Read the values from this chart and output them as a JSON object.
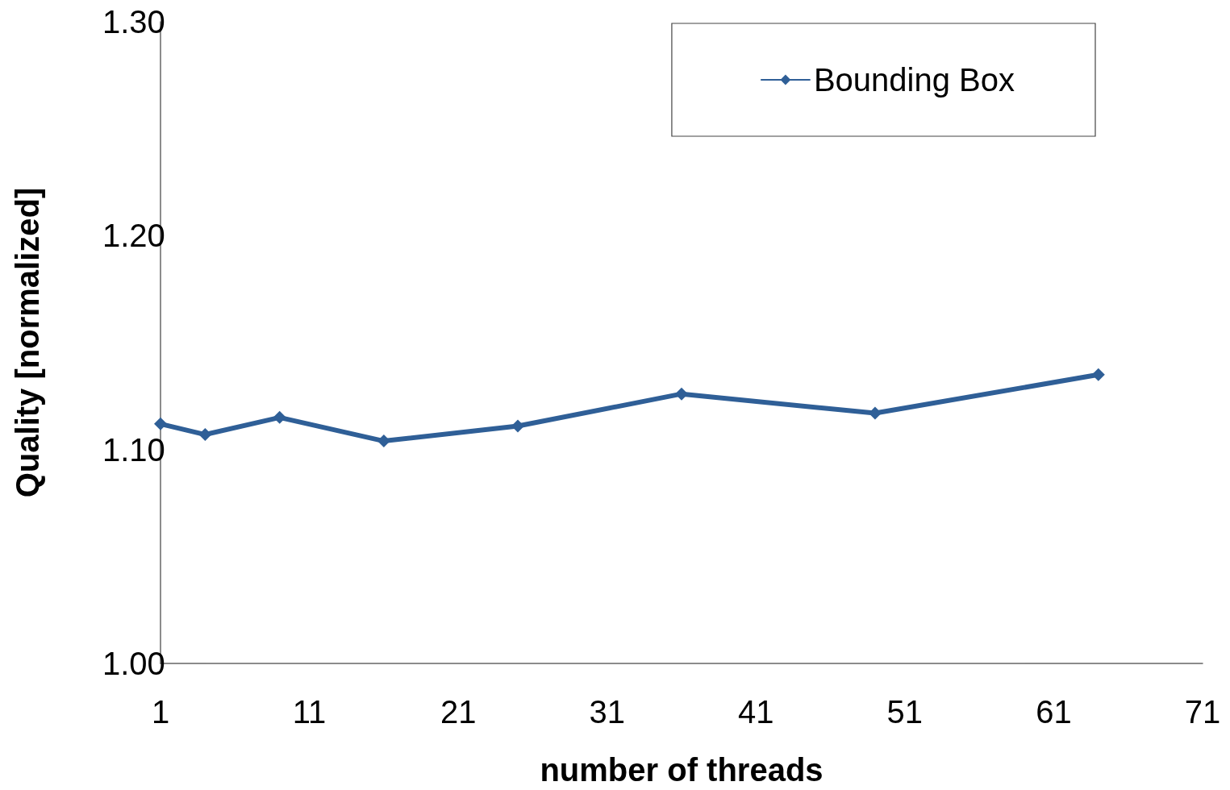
{
  "chart_data": {
    "type": "line",
    "xlabel": "number of threads",
    "ylabel": "Quality [normalized]",
    "x": [
      1,
      4,
      9,
      16,
      25,
      36,
      49,
      64
    ],
    "series": [
      {
        "name": "Bounding Box",
        "color": "#2f5f97",
        "values": [
          1.112,
          1.107,
          1.115,
          1.104,
          1.111,
          1.126,
          1.117,
          1.135
        ]
      }
    ],
    "xlim": [
      1,
      71
    ],
    "xticks": [
      1,
      11,
      21,
      31,
      41,
      51,
      61,
      71
    ],
    "ylim": [
      1.0,
      1.3
    ],
    "yticks": [
      {
        "value": 1.0,
        "label": "1.00"
      },
      {
        "value": 1.1,
        "label": "1.10"
      },
      {
        "value": 1.2,
        "label": "1.20"
      },
      {
        "value": 1.3,
        "label": "1.30"
      }
    ],
    "marker": "diamond",
    "line_style": "solid",
    "legend": "top right",
    "grid": false
  }
}
